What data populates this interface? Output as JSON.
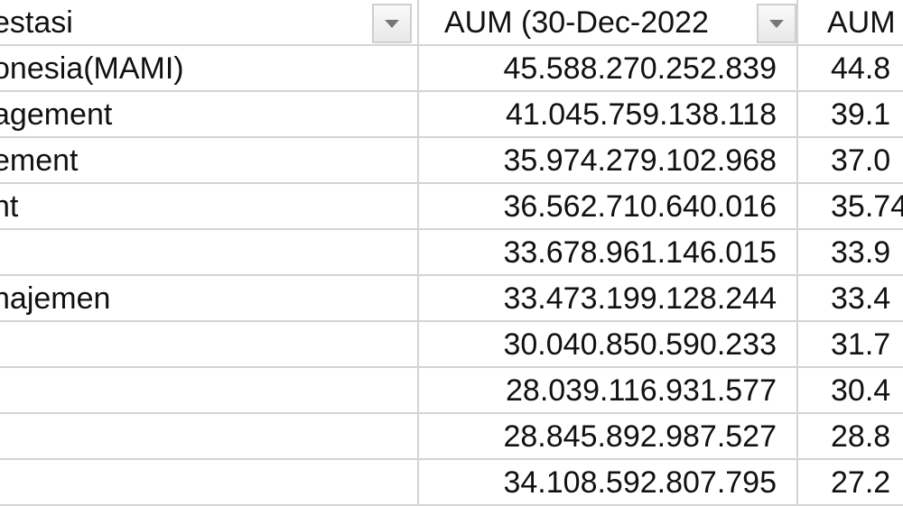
{
  "header": {
    "col1": "estasi",
    "col2": "AUM (30-Dec-2022",
    "col3": "AUM",
    "filter_icon": "dropdown-arrow-icon"
  },
  "rows": [
    {
      "name": "onesia(MAMI)",
      "aum_2022": "45.588.270.252.839",
      "aum_next": "44.8"
    },
    {
      "name": "agement",
      "aum_2022": "41.045.759.138.118",
      "aum_next": "39.1"
    },
    {
      "name": "ement",
      "aum_2022": "35.974.279.102.968",
      "aum_next": "37.0"
    },
    {
      "name": "nt",
      "aum_2022": "36.562.710.640.016",
      "aum_next": "35.74"
    },
    {
      "name": "",
      "aum_2022": "33.678.961.146.015",
      "aum_next": "33.9"
    },
    {
      "name": "najemen",
      "aum_2022": "33.473.199.128.244",
      "aum_next": "33.4"
    },
    {
      "name": "",
      "aum_2022": "30.040.850.590.233",
      "aum_next": "31.7"
    },
    {
      "name": "",
      "aum_2022": "28.039.116.931.577",
      "aum_next": "30.4"
    },
    {
      "name": "",
      "aum_2022": "28.845.892.987.527",
      "aum_next": "28.8"
    },
    {
      "name": "",
      "aum_2022": "34.108.592.807.795",
      "aum_next": "27.2"
    }
  ]
}
